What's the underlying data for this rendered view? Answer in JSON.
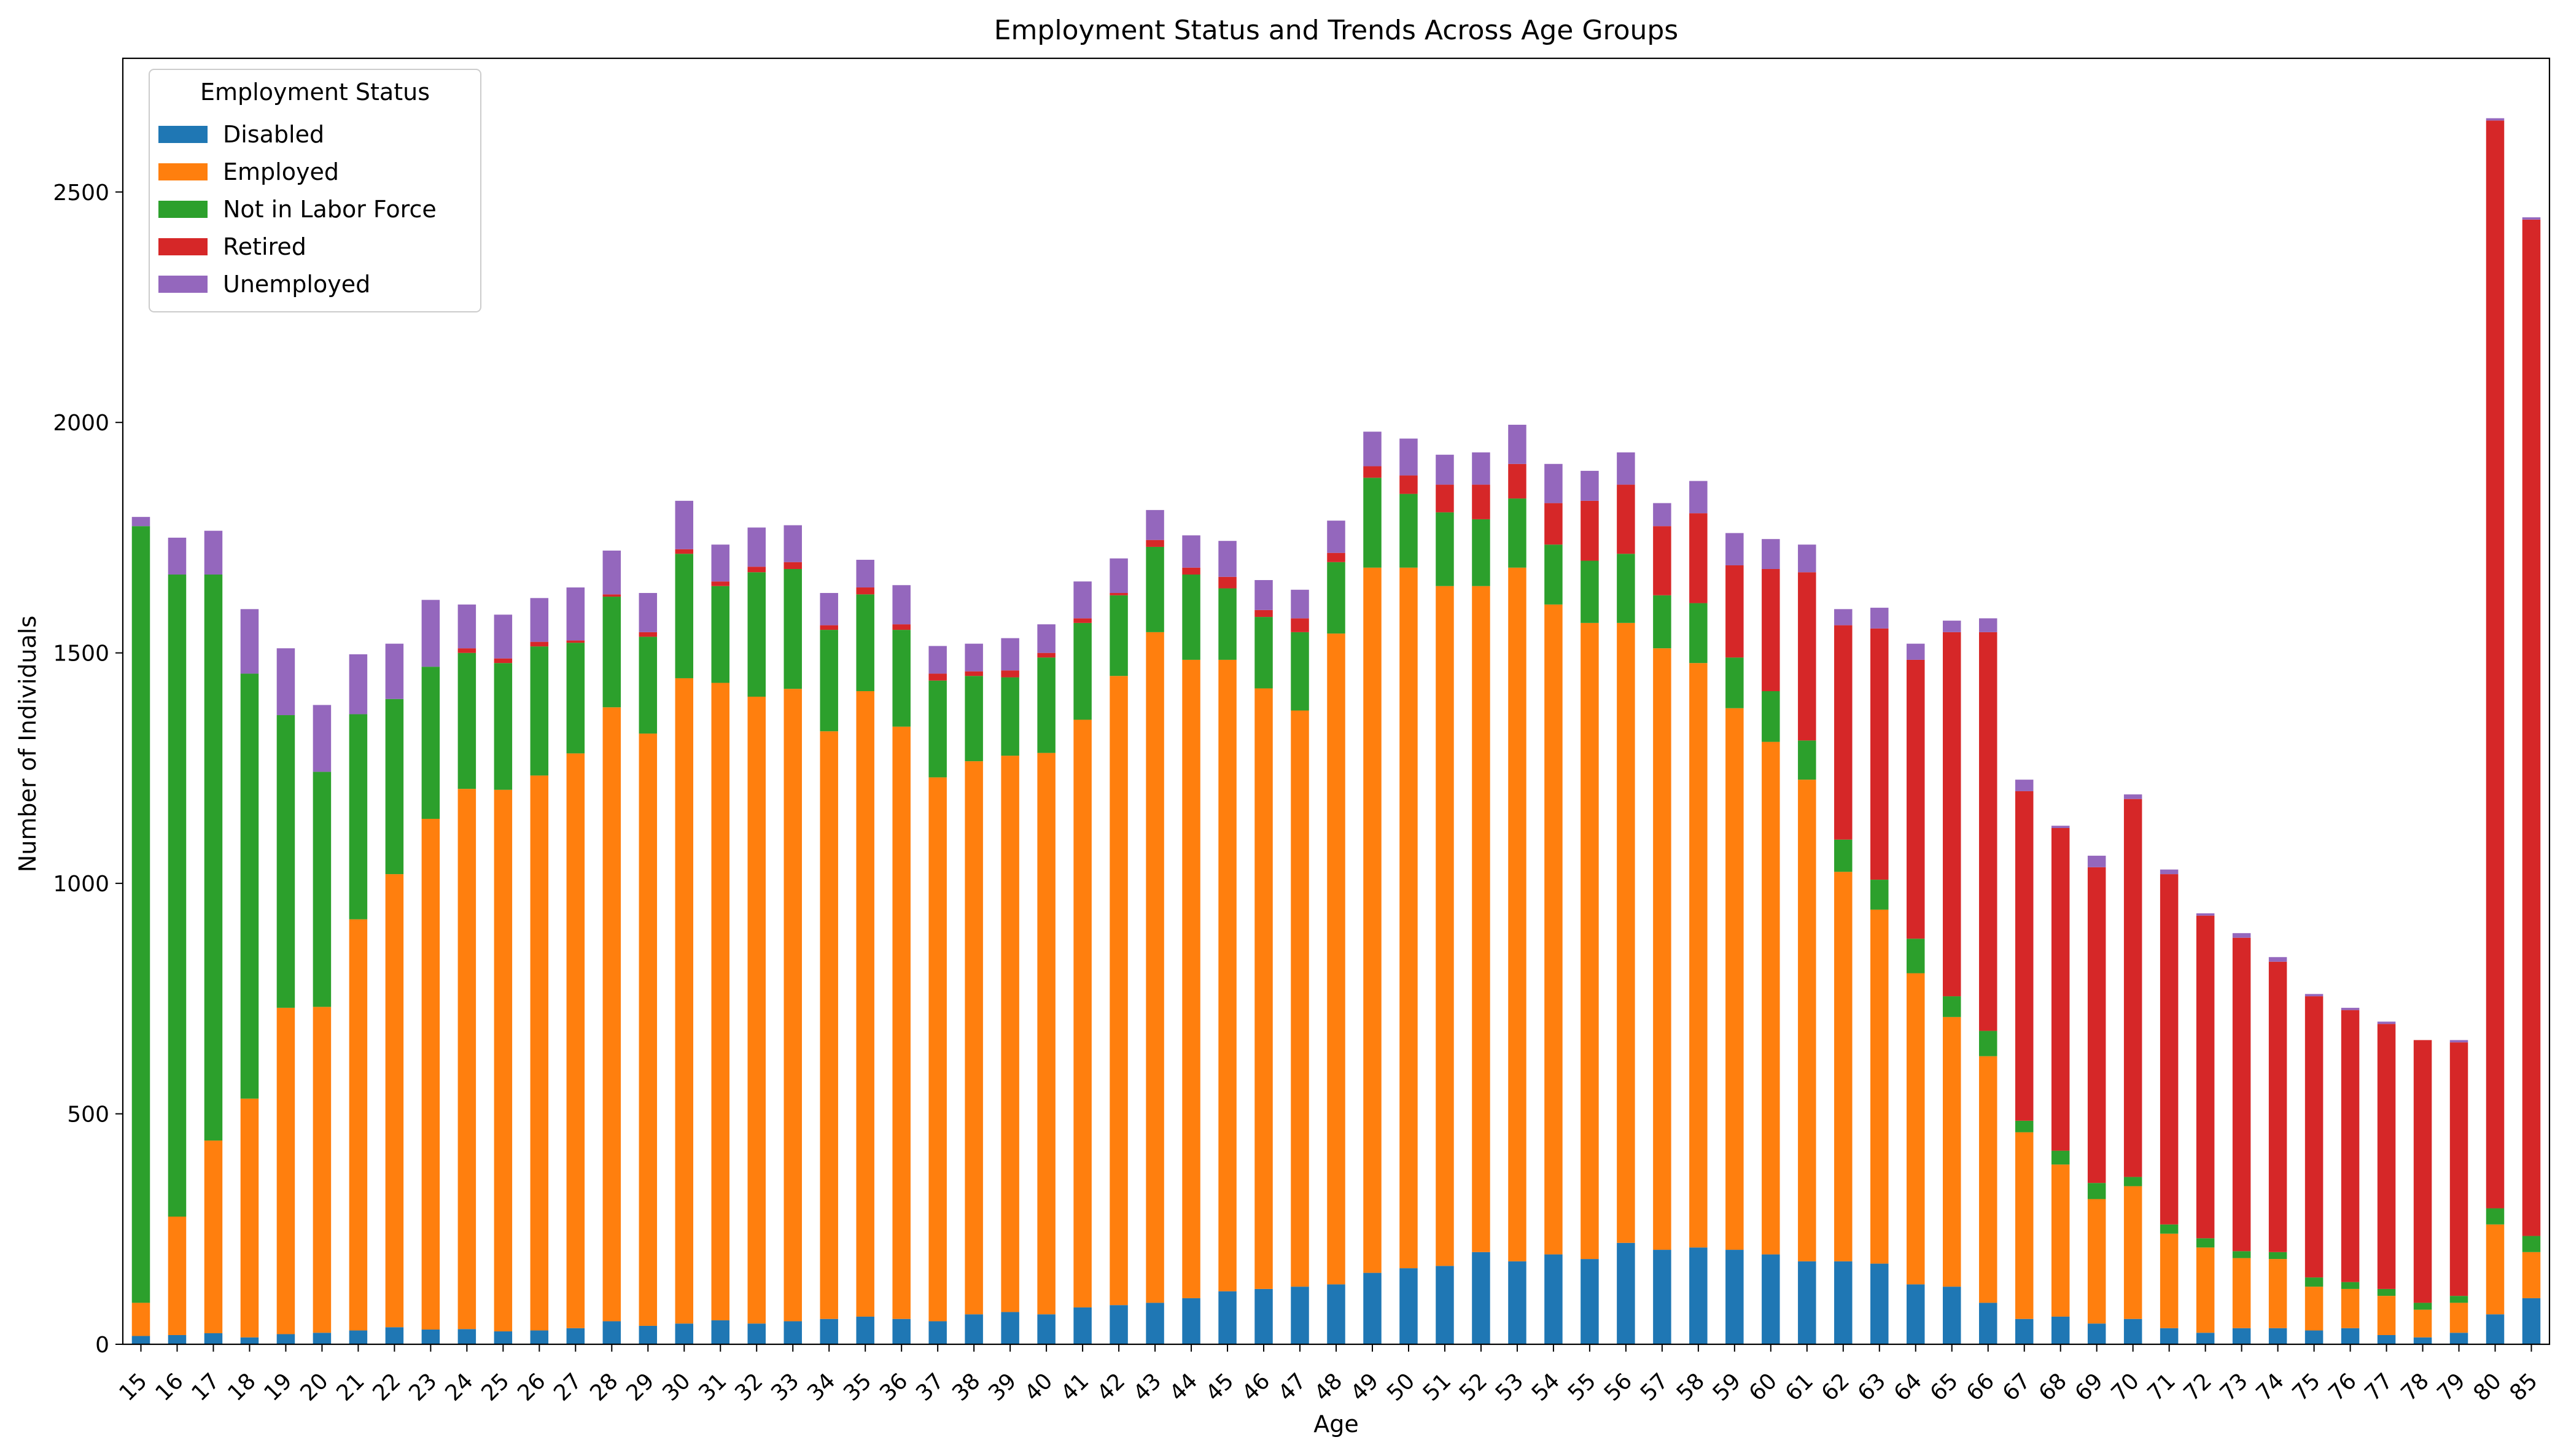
{
  "chart_data": {
    "type": "bar",
    "stacked": true,
    "title": "Employment Status and Trends Across Age Groups",
    "xlabel": "Age",
    "ylabel": "Number of Individuals",
    "ylim": [
      0,
      2790
    ],
    "yticks": [
      0,
      500,
      1000,
      1500,
      2000,
      2500
    ],
    "grid": false,
    "legend": {
      "title": "Employment Status",
      "position": "top-left"
    },
    "categories": [
      "15",
      "16",
      "17",
      "18",
      "19",
      "20",
      "21",
      "22",
      "23",
      "24",
      "25",
      "26",
      "27",
      "28",
      "29",
      "30",
      "31",
      "32",
      "33",
      "34",
      "35",
      "36",
      "37",
      "38",
      "39",
      "40",
      "41",
      "42",
      "43",
      "44",
      "45",
      "46",
      "47",
      "48",
      "49",
      "50",
      "51",
      "52",
      "53",
      "54",
      "55",
      "56",
      "57",
      "58",
      "59",
      "60",
      "61",
      "62",
      "63",
      "64",
      "65",
      "66",
      "67",
      "68",
      "69",
      "70",
      "71",
      "72",
      "73",
      "74",
      "75",
      "76",
      "77",
      "78",
      "79",
      "80",
      "85"
    ],
    "series": [
      {
        "name": "Disabled",
        "color": "#1f77b4",
        "values": [
          18,
          20,
          24,
          15,
          22,
          25,
          30,
          37,
          32,
          33,
          28,
          30,
          35,
          50,
          40,
          45,
          52,
          45,
          50,
          55,
          60,
          55,
          50,
          65,
          70,
          65,
          80,
          85,
          90,
          100,
          115,
          120,
          125,
          130,
          155,
          165,
          170,
          200,
          180,
          195,
          185,
          220,
          205,
          210,
          205,
          195,
          180,
          180,
          175,
          130,
          125,
          90,
          55,
          60,
          45,
          55,
          35,
          25,
          35,
          35,
          30,
          35,
          20,
          15,
          25,
          65,
          100
        ]
      },
      {
        "name": "Employed",
        "color": "#ff7f0e",
        "values": [
          72,
          257,
          418,
          518,
          708,
          707,
          892,
          983,
          1108,
          1172,
          1175,
          1204,
          1247,
          1332,
          1285,
          1400,
          1383,
          1360,
          1372,
          1275,
          1357,
          1285,
          1180,
          1200,
          1207,
          1218,
          1275,
          1365,
          1455,
          1385,
          1370,
          1303,
          1250,
          1412,
          1530,
          1520,
          1475,
          1445,
          1505,
          1410,
          1380,
          1345,
          1305,
          1268,
          1175,
          1112,
          1045,
          845,
          768,
          675,
          585,
          535,
          405,
          330,
          270,
          288,
          205,
          185,
          152,
          150,
          95,
          85,
          85,
          60,
          65,
          195,
          100
        ]
      },
      {
        "name": "Not in Labor Force",
        "color": "#2ca02c",
        "values": [
          1685,
          1393,
          1228,
          922,
          635,
          510,
          445,
          380,
          330,
          295,
          275,
          280,
          240,
          240,
          210,
          270,
          210,
          270,
          260,
          220,
          210,
          210,
          210,
          185,
          170,
          207,
          210,
          175,
          185,
          185,
          155,
          155,
          170,
          155,
          195,
          160,
          160,
          145,
          150,
          130,
          135,
          150,
          115,
          130,
          110,
          110,
          85,
          70,
          65,
          75,
          45,
          55,
          25,
          30,
          35,
          20,
          20,
          20,
          15,
          15,
          20,
          15,
          15,
          15,
          15,
          35,
          35
        ]
      },
      {
        "name": "Retired",
        "color": "#d62728",
        "values": [
          0,
          0,
          0,
          0,
          0,
          0,
          0,
          0,
          0,
          10,
          10,
          10,
          5,
          5,
          10,
          10,
          10,
          12,
          15,
          10,
          15,
          12,
          15,
          10,
          15,
          10,
          10,
          5,
          15,
          15,
          25,
          15,
          30,
          20,
          25,
          40,
          60,
          75,
          75,
          90,
          130,
          150,
          150,
          195,
          200,
          265,
          365,
          465,
          545,
          605,
          790,
          865,
          715,
          700,
          685,
          820,
          760,
          700,
          680,
          630,
          610,
          590,
          575,
          570,
          550,
          2360,
          2205
        ]
      },
      {
        "name": "Unemployed",
        "color": "#9467bd",
        "values": [
          20,
          80,
          95,
          140,
          145,
          145,
          130,
          120,
          145,
          95,
          95,
          95,
          115,
          95,
          85,
          105,
          80,
          85,
          80,
          70,
          60,
          85,
          60,
          60,
          70,
          62,
          80,
          75,
          65,
          70,
          78,
          65,
          62,
          70,
          75,
          80,
          65,
          70,
          85,
          85,
          65,
          70,
          50,
          70,
          70,
          65,
          60,
          35,
          45,
          35,
          25,
          30,
          25,
          5,
          25,
          10,
          10,
          5,
          10,
          10,
          5,
          5,
          5,
          0,
          5,
          5,
          5
        ]
      }
    ]
  }
}
